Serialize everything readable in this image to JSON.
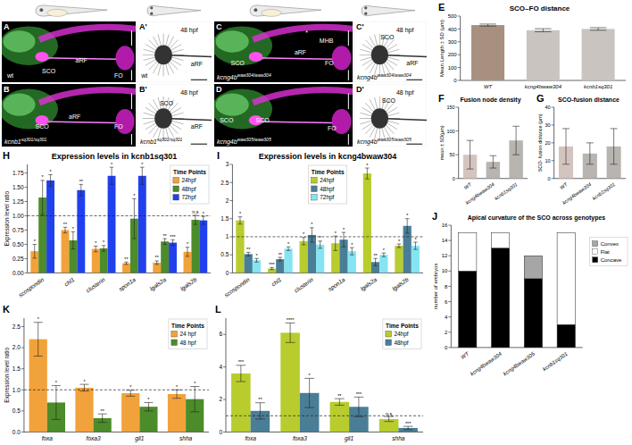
{
  "image_panels": [
    {
      "letter": "A",
      "labels": [
        "wt",
        "SCO",
        "aRF",
        "FO"
      ]
    },
    {
      "letter": "A'",
      "labels": [
        "48 hpf",
        "wt",
        "aRF"
      ]
    },
    {
      "letter": "B",
      "genotype": {
        "gene": "kcnb1",
        "allele": "sq301/sq301"
      },
      "labels": [
        "SCO",
        "aRF",
        "FO"
      ]
    },
    {
      "letter": "B'",
      "genotype": {
        "gene": "kcnb1",
        "allele": "sq301/sq301"
      },
      "labels": [
        "48 hpf",
        "SCO",
        "aRF"
      ]
    },
    {
      "letter": "C",
      "genotype": {
        "gene": "kcng4b",
        "allele": "waw304/waw304"
      },
      "labels": [
        "*",
        "MHB",
        "SCO",
        "aRF",
        "FO"
      ]
    },
    {
      "letter": "C'",
      "genotype": {
        "gene": "kcng4b",
        "allele": "waw304/waw304"
      },
      "labels": [
        "48 hpf",
        "SCO",
        "aRF"
      ]
    },
    {
      "letter": "D",
      "genotype": {
        "gene": "kcng4b",
        "allele": "waw305/waw305"
      },
      "labels": [
        "SCO",
        "SCO",
        "FO"
      ]
    },
    {
      "letter": "D'",
      "genotype": {
        "gene": "kcng4b",
        "allele": "waw305/waw305"
      },
      "labels": [
        "48 hpf",
        "SCO"
      ]
    }
  ],
  "chart_data": [
    {
      "type": "bar",
      "letter": "E",
      "title": "SCO–FO distance",
      "y_label": "Mean Length ± SD (µm)",
      "categories": [
        "WT",
        "kcng4bwaw304",
        "kcnb1sq301"
      ],
      "values": [
        430,
        390,
        400
      ],
      "errors": [
        8,
        12,
        10
      ],
      "colors": [
        "#a89080",
        "#c9c4bf",
        "#c9c4bf"
      ],
      "ylim": [
        0,
        500
      ],
      "yticks": [
        0,
        100,
        200,
        300,
        400,
        500
      ]
    },
    {
      "type": "bar",
      "letter": "F",
      "title": "Fusion node density",
      "y_label": "mean ± SD(µm)",
      "categories": [
        "WT",
        "kcng4bwaw304",
        "kcnb1sq301"
      ],
      "values": [
        50,
        35,
        80
      ],
      "errors": [
        30,
        13,
        30
      ],
      "colors": [
        "#d4c4c0",
        "#b8b4b0",
        "#b8b4b0"
      ],
      "ylim": [
        0,
        150
      ],
      "yticks": [
        0,
        50,
        100,
        150
      ]
    },
    {
      "type": "bar",
      "letter": "G",
      "title": "SCO-fusion distance",
      "y_label": "SCO- fusion distance (µm)",
      "categories": [
        "WT",
        "kcng4bwaw304",
        "kcnb1sq301"
      ],
      "values": [
        18,
        14,
        18
      ],
      "errors": [
        10,
        6,
        10
      ],
      "colors": [
        "#d4c4c0",
        "#b8b4b0",
        "#b8b4b0"
      ],
      "ylim": [
        0,
        40
      ],
      "yticks": [
        0,
        10,
        20,
        30,
        40
      ]
    },
    {
      "type": "bar",
      "letter": "H",
      "title": "Expression levels in kcnb1sq301",
      "y_label": "Expression level ratio",
      "categories": [
        "scospondin",
        "chl1",
        "clusterin",
        "spon1a",
        "lgals2a",
        "lgals2b"
      ],
      "series": [
        {
          "name": "24hpf",
          "color": "#f2a23a",
          "values": [
            0.38,
            0.75,
            0.42,
            0.17,
            0.18,
            0.37
          ],
          "errors": [
            0.12,
            0.05,
            0.05,
            0.02,
            0.03,
            0.08
          ],
          "significance": [
            "*",
            "**",
            "*",
            "**",
            "**",
            "*"
          ]
        },
        {
          "name": "48hpf",
          "color": "#4c8c2b",
          "values": [
            1.32,
            0.57,
            0.43,
            0.95,
            0.55,
            0.93
          ],
          "errors": [
            0.3,
            0.15,
            0.05,
            0.35,
            0.05,
            0.08
          ],
          "significance": [
            "*",
            "*",
            "*",
            "*",
            "**",
            "n.s"
          ]
        },
        {
          "name": "72hpf",
          "color": "#2040f0",
          "values": [
            1.62,
            1.45,
            1.7,
            1.7,
            0.53,
            0.92
          ],
          "errors": [
            0.1,
            0.1,
            0.15,
            0.15,
            0.05,
            0.07
          ],
          "significance": [
            "*",
            "**",
            "*",
            "*",
            "***",
            "*"
          ]
        }
      ],
      "legend": "upper right",
      "legend_title": "Time Points",
      "reference_line": 1,
      "ylim": [
        0,
        1.9
      ],
      "yticks": [
        {
          "value": 0,
          "label": "0.00"
        },
        0.25,
        {
          "value": 0.5,
          "label": "0.50"
        },
        0.75,
        {
          "value": 1,
          "label": "1.00"
        },
        1.25,
        {
          "value": 1.5,
          "label": "1.50"
        },
        1.75
      ]
    },
    {
      "type": "bar",
      "letter": "I",
      "title": "Expression levels in kcng4bwaw304",
      "categories": [
        "scospondin",
        "chl1",
        "clusterin",
        "spon1a",
        "lgals2a",
        "lgals2b"
      ],
      "series": [
        {
          "name": "24hpf",
          "color": "#b8cc2e",
          "values": [
            1.45,
            0.12,
            0.88,
            0.82,
            2.75,
            0.75
          ],
          "errors": [
            0.1,
            0.03,
            0.1,
            0.2,
            0.15,
            0.05
          ],
          "significance": [
            "*",
            "***",
            "*",
            "*",
            "*",
            "*"
          ]
        },
        {
          "name": "48hpf",
          "color": "#4a7e96",
          "values": [
            0.52,
            0.38,
            1.05,
            0.92,
            0.3,
            1.3
          ],
          "errors": [
            0.05,
            0.05,
            0.2,
            0.2,
            0.1,
            0.2
          ],
          "significance": [
            "**",
            "**",
            "*",
            "*",
            "**",
            "*"
          ]
        },
        {
          "name": "72hpf",
          "color": "#86e4f2",
          "values": [
            0.35,
            0.67,
            0.78,
            0.6,
            0.5,
            0.75
          ],
          "errors": [
            0.05,
            0.05,
            0.1,
            0.1,
            0.05,
            0.1
          ],
          "significance": [
            "*",
            "*",
            "*",
            "*",
            "*",
            "*"
          ]
        }
      ],
      "legend": "upper center",
      "legend_title": "Time Points",
      "reference_line": 1,
      "ylim": [
        0,
        3
      ],
      "yticks": [
        0,
        0.5,
        1,
        1.5,
        2,
        2.5,
        3
      ]
    },
    {
      "type": "bar",
      "letter": "J",
      "title": "Apical curvature of the SCO across genotypes",
      "y_label": "number of embryos",
      "stacked": true,
      "categories": [
        "WT",
        "kcng4bwaw304",
        "kcng4bwaw305",
        "kcnb1sq301"
      ],
      "series": [
        {
          "name": "Concave",
          "color": "#000000",
          "values": [
            10,
            13,
            9,
            3
          ]
        },
        {
          "name": "Flat",
          "color": "#ffffff",
          "values": [
            5,
            2,
            0,
            12
          ]
        },
        {
          "name": "Convex",
          "color": "#a6a6a6",
          "values": [
            0,
            0,
            3,
            0
          ]
        }
      ],
      "legend": "right",
      "ylim": [
        0,
        16
      ],
      "yticks": [
        0,
        2,
        4,
        6,
        8,
        10,
        12,
        14,
        16
      ]
    },
    {
      "type": "bar",
      "letter": "K",
      "y_label": "Expression level ratio",
      "categories": [
        "foxa",
        "foxa3",
        "gli1",
        "shha"
      ],
      "series": [
        {
          "name": "24 hpf",
          "color": "#f2a23a",
          "values": [
            2.2,
            1.05,
            0.92,
            0.9
          ],
          "errors": [
            0.4,
            0.08,
            0.07,
            0.1
          ],
          "significance": [
            "*",
            "*",
            "*",
            "*"
          ]
        },
        {
          "name": "48 hpf",
          "color": "#4c8c2b",
          "values": [
            0.7,
            0.33,
            0.6,
            0.78
          ],
          "errors": [
            0.4,
            0.1,
            0.1,
            0.3
          ],
          "significance": [
            "*",
            "**",
            "*",
            "*"
          ]
        }
      ],
      "legend": "upper right",
      "legend_title": "Time Points",
      "reference_line": 1,
      "ylim": [
        0,
        2.7
      ],
      "yticks": [
        {
          "value": 0,
          "label": "0.0"
        },
        0.5,
        {
          "value": 1,
          "label": "1.0"
        },
        1.5,
        {
          "value": 2,
          "label": "2.0"
        },
        2.5
      ]
    },
    {
      "type": "bar",
      "letter": "L",
      "categories": [
        "foxa",
        "foxa3",
        "gli1",
        "shha"
      ],
      "series": [
        {
          "name": "24hpf",
          "color": "#b8cc2e",
          "values": [
            3.6,
            6.1,
            1.85,
            0.8
          ],
          "errors": [
            0.5,
            0.6,
            0.2,
            0.15
          ],
          "significance": [
            "***",
            "****",
            "**",
            "n.s"
          ]
        },
        {
          "name": "48hpf",
          "color": "#4a7e96",
          "values": [
            1.3,
            2.4,
            1.55,
            0.25
          ],
          "errors": [
            0.5,
            0.9,
            0.6,
            0.1
          ],
          "significance": [
            "**",
            "*",
            "***",
            "***"
          ]
        }
      ],
      "legend": "upper right",
      "legend_title": "Time Points",
      "reference_line": 1,
      "ylim": [
        0,
        7
      ],
      "yticks": [
        0,
        2,
        4,
        6
      ]
    }
  ]
}
